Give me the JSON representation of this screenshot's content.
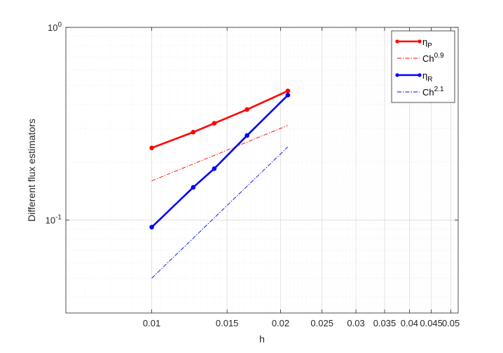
{
  "chart_data": {
    "type": "line",
    "title": "",
    "xlabel": "h",
    "ylabel": "Different flux estimators",
    "x_scale": "log",
    "y_scale": "log",
    "xlim": [
      0.0063,
      0.052
    ],
    "ylim": [
      0.033,
      1.0
    ],
    "grid": true,
    "minor_grid": true,
    "legend_position": "top-right",
    "x_ticks": [
      0.01,
      0.015,
      0.02,
      0.025,
      0.03,
      0.035,
      0.04,
      0.045,
      0.05
    ],
    "x_tick_labels": [
      "0.01",
      "0.015",
      "0.02",
      "0.025",
      "0.03",
      "0.035",
      "0.04",
      "0.045",
      "0.05"
    ],
    "y_major_ticks": [
      {
        "value": 0.1,
        "base": "10",
        "exp": "-1"
      },
      {
        "value": 1.0,
        "base": "10",
        "exp": "0"
      }
    ],
    "series": [
      {
        "name": "η",
        "name_sub": "P",
        "color": "#ff0000",
        "style": "solid-marker",
        "x": [
          0.01,
          0.0125,
          0.014,
          0.0167,
          0.0208
        ],
        "y": [
          0.237,
          0.286,
          0.318,
          0.375,
          0.468
        ]
      },
      {
        "name": "Ch",
        "name_sup": "0.9",
        "color": "#ff0000",
        "style": "dashdot",
        "x": [
          0.01,
          0.0208
        ],
        "y": [
          0.16,
          0.31
        ]
      },
      {
        "name": "η",
        "name_sub": "R",
        "color": "#0000ff",
        "style": "solid-marker",
        "x": [
          0.01,
          0.0125,
          0.014,
          0.0167,
          0.0208
        ],
        "y": [
          0.092,
          0.148,
          0.185,
          0.275,
          0.445
        ]
      },
      {
        "name": "Ch",
        "name_sup": "2.1",
        "color": "#0000ff",
        "style": "dashdot",
        "x": [
          0.01,
          0.0208
        ],
        "y": [
          0.05,
          0.24
        ]
      }
    ]
  }
}
